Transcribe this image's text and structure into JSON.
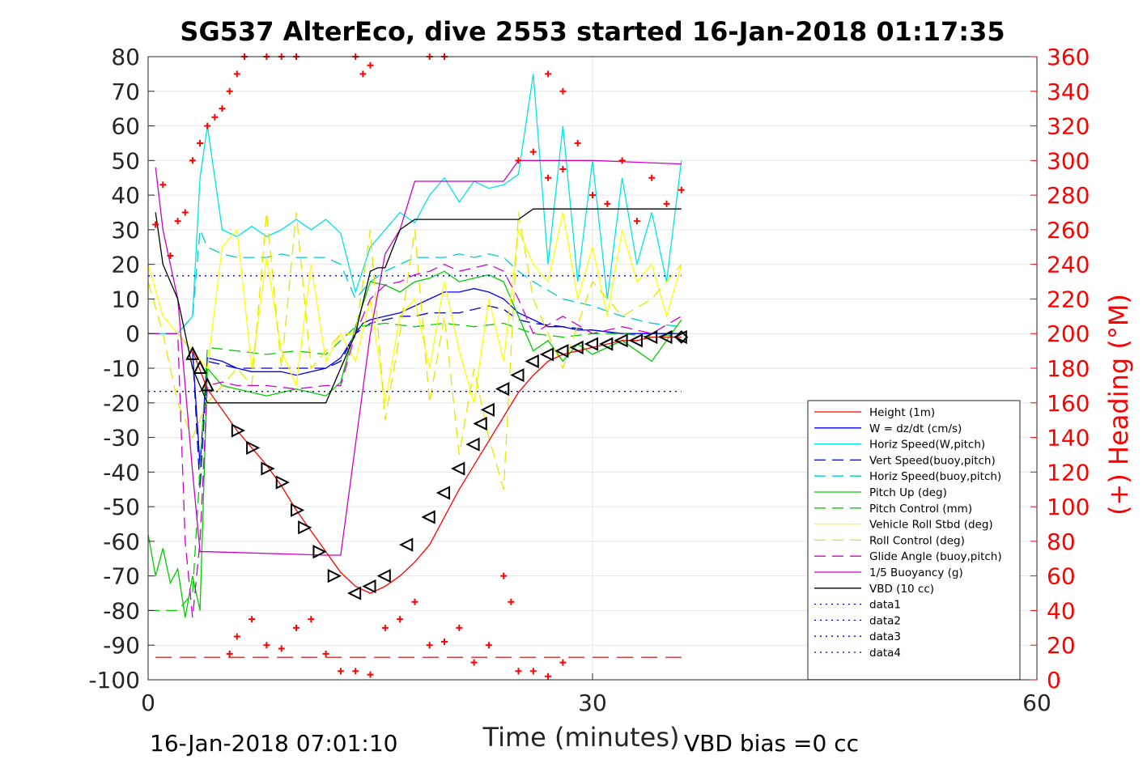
{
  "chart_data": {
    "type": "line",
    "title": "SG537 AlterEco, dive 2553 started 16-Jan-2018 01:17:35",
    "xlabel": "Time (minutes)",
    "ylabel_right": "(+) Heading (°M)",
    "footer_left": "16-Jan-2018 07:01:10",
    "footer_right": "VBD bias =0 cc",
    "xlim": [
      0,
      60
    ],
    "ylim": [
      -100,
      80
    ],
    "ylim_right": [
      0,
      360
    ],
    "x_ticks": [
      "0",
      "30",
      "60"
    ],
    "y_ticks": [
      "80",
      "70",
      "60",
      "50",
      "40",
      "30",
      "20",
      "10",
      "0",
      "-10",
      "-20",
      "-30",
      "-40",
      "-50",
      "-60",
      "-70",
      "-80",
      "-90",
      "-100"
    ],
    "y_right_ticks": [
      "360",
      "340",
      "320",
      "300",
      "280",
      "260",
      "240",
      "220",
      "200",
      "180",
      "160",
      "140",
      "120",
      "100",
      "80",
      "60",
      "40",
      "20",
      "0"
    ],
    "grid": true,
    "legend_position": "lower-right",
    "colors": {
      "height": "#ff0000",
      "w": "#0000ff",
      "horiz": "#00e5e5",
      "vert_buoy": "#0000cc",
      "horiz_buoy": "#00cccc",
      "pitch": "#00cc00",
      "pitch_ctrl": "#00cc00",
      "roll": "#ffff00",
      "roll_ctrl": "#e6e600",
      "glide": "#cc00cc",
      "buoy": "#cc00cc",
      "vbd": "#000000",
      "heading": "#ff0000",
      "data": "#0000aa"
    },
    "series": [
      {
        "name": "Height (1m)",
        "key": "height",
        "style": "solid",
        "x": [
          3,
          4,
          5,
          6,
          7,
          8,
          9,
          10,
          11,
          12,
          13,
          14,
          15,
          16,
          17,
          18,
          19,
          20,
          21,
          22,
          23,
          24,
          25,
          26,
          27,
          28,
          29,
          30,
          31,
          32,
          33,
          34,
          35,
          36
        ],
        "values": [
          -5,
          -16,
          -22,
          -28,
          -33,
          -38,
          -44,
          -51,
          -57,
          -63,
          -69,
          -73,
          -75,
          -73,
          -70,
          -66,
          -61,
          -53,
          -45,
          -38,
          -31,
          -24,
          -17,
          -12,
          -8,
          -6,
          -5,
          -4,
          -3,
          -2,
          -2,
          -1,
          -1,
          -1
        ]
      },
      {
        "name": "W = dz/dt (cm/s)",
        "key": "w",
        "style": "solid",
        "x": [
          0,
          2,
          3,
          3.5,
          4,
          5,
          6,
          7,
          8,
          9,
          10,
          11,
          12,
          13,
          14,
          14.5,
          15,
          16,
          17,
          18,
          19,
          20,
          21,
          22,
          23,
          24,
          25,
          26,
          27,
          28,
          29,
          30,
          32,
          34,
          36
        ],
        "values": [
          0,
          0,
          -5,
          -38,
          -7,
          -8,
          -10,
          -11,
          -11,
          -11,
          -12,
          -11,
          -10,
          -7,
          0,
          3,
          4,
          5,
          6,
          8,
          10,
          12,
          12,
          13,
          12,
          10,
          6,
          4,
          2,
          2,
          1,
          1,
          0,
          0,
          0
        ]
      },
      {
        "name": "Horiz Speed(W,pitch)",
        "key": "horiz",
        "style": "solid",
        "x": [
          0,
          2,
          3,
          3.5,
          4,
          5,
          6,
          7,
          8,
          9,
          10,
          11,
          12,
          13,
          14,
          15,
          16,
          17,
          18,
          19,
          20,
          21,
          22,
          23,
          24,
          25,
          26,
          27,
          28,
          29,
          30,
          31,
          32,
          33,
          34,
          35,
          36
        ],
        "values": [
          0,
          0,
          5,
          45,
          60,
          30,
          28,
          31,
          28,
          30,
          33,
          30,
          33,
          29,
          12,
          25,
          30,
          35,
          32,
          40,
          45,
          38,
          44,
          42,
          43,
          46,
          75,
          20,
          60,
          15,
          50,
          10,
          45,
          20,
          35,
          15,
          50
        ]
      },
      {
        "name": "Vert Speed(buoy,pitch)",
        "key": "vert_buoy",
        "style": "dashed",
        "x": [
          0,
          2,
          3,
          3.5,
          4,
          5,
          6,
          7,
          8,
          9,
          10,
          11,
          12,
          13,
          14,
          15,
          16,
          17,
          18,
          19,
          20,
          21,
          22,
          23,
          24,
          25,
          26,
          28,
          30,
          32,
          34,
          36
        ],
        "values": [
          0,
          0,
          -5,
          -45,
          -8,
          -9,
          -10,
          -10,
          -10,
          -10,
          -10,
          -10,
          -10,
          -8,
          0,
          3,
          4,
          5,
          5,
          6,
          6,
          6,
          7,
          8,
          7,
          4,
          3,
          2,
          1,
          0,
          0,
          0
        ]
      },
      {
        "name": "Horiz Speed(buoy,pitch)",
        "key": "horiz_buoy",
        "style": "dashed",
        "x": [
          0,
          2,
          3,
          3.5,
          4,
          5,
          6,
          7,
          8,
          9,
          10,
          11,
          12,
          13,
          14,
          15,
          16,
          17,
          18,
          19,
          20,
          21,
          22,
          23,
          24,
          25,
          26,
          28,
          30,
          32,
          34,
          36
        ],
        "values": [
          0,
          0,
          5,
          30,
          25,
          23,
          22,
          22,
          22,
          23,
          22,
          22,
          22,
          20,
          10,
          15,
          18,
          20,
          22,
          22,
          22,
          23,
          22,
          23,
          22,
          18,
          15,
          10,
          8,
          5,
          3,
          2
        ]
      },
      {
        "name": "Pitch Up (deg)",
        "key": "pitch",
        "style": "solid",
        "x": [
          0,
          0.5,
          1,
          1.5,
          2,
          2.5,
          3,
          3.5,
          4,
          5,
          6,
          7,
          8,
          9,
          10,
          11,
          12,
          13,
          14,
          15,
          16,
          17,
          18,
          19,
          20,
          21,
          22,
          23,
          24,
          25,
          26,
          27,
          28,
          29,
          30,
          32,
          34,
          36
        ],
        "values": [
          -58,
          -70,
          -62,
          -72,
          -68,
          -82,
          -70,
          -80,
          -10,
          -15,
          -16,
          -17,
          -18,
          -17,
          -16,
          -17,
          -18,
          -14,
          2,
          15,
          14,
          12,
          15,
          16,
          18,
          15,
          16,
          17,
          15,
          5,
          -5,
          -2,
          -8,
          -3,
          -6,
          -2,
          -8,
          4
        ]
      },
      {
        "name": "Pitch Control (mm)",
        "key": "pitch_ctrl",
        "style": "dashed",
        "x": [
          0,
          2,
          3,
          4,
          6,
          8,
          10,
          12,
          14,
          16,
          18,
          20,
          22,
          24,
          26,
          28,
          30,
          32,
          34,
          36
        ],
        "values": [
          -80,
          -80,
          -75,
          -4,
          -5,
          -6,
          -5,
          -6,
          2,
          3,
          2,
          3,
          2,
          3,
          0,
          -1,
          0,
          0,
          -1,
          0
        ]
      },
      {
        "name": "Vehicle Roll Stbd (deg)",
        "key": "roll",
        "style": "solid",
        "x": [
          0,
          1,
          2,
          3,
          4,
          5,
          6,
          7,
          8,
          9,
          10,
          11,
          12,
          13,
          14,
          15,
          16,
          17,
          18,
          19,
          20,
          21,
          22,
          23,
          24,
          25,
          26,
          27,
          28,
          29,
          30,
          31,
          32,
          33,
          34,
          35,
          36
        ],
        "values": [
          20,
          5,
          0,
          -5,
          -10,
          25,
          30,
          -10,
          22,
          -5,
          -15,
          20,
          -8,
          0,
          -8,
          10,
          -20,
          5,
          10,
          -10,
          15,
          -5,
          -20,
          10,
          -8,
          30,
          20,
          15,
          35,
          10,
          25,
          5,
          30,
          15,
          20,
          5,
          20
        ]
      },
      {
        "name": "Roll Control (deg)",
        "key": "roll_ctrl",
        "style": "dashed",
        "x": [
          0,
          1,
          2,
          3,
          4,
          5,
          6,
          7,
          8,
          9,
          10,
          11,
          12,
          13,
          14,
          15,
          16,
          17,
          18,
          19,
          20,
          21,
          22,
          23,
          24,
          25,
          26,
          28,
          30,
          32,
          34,
          36
        ],
        "values": [
          15,
          0,
          -20,
          -30,
          -20,
          -15,
          -10,
          -15,
          35,
          -10,
          35,
          -10,
          -5,
          0,
          0,
          30,
          -25,
          0,
          30,
          -20,
          5,
          -35,
          -10,
          -30,
          -45,
          35,
          10,
          -10,
          15,
          5,
          10,
          20
        ]
      },
      {
        "name": "Glide Angle (buoy,pitch)",
        "key": "glide",
        "style": "dashed",
        "x": [
          0,
          1,
          2,
          2.5,
          3,
          3.5,
          4,
          5,
          6,
          8,
          10,
          12,
          13,
          14,
          15,
          16,
          17,
          18,
          19,
          20,
          21,
          22,
          23,
          24,
          25,
          26,
          28,
          30,
          32,
          34,
          36
        ],
        "values": [
          0,
          0,
          0,
          -60,
          -82,
          -60,
          -15,
          -14,
          -15,
          -15,
          -16,
          -15,
          -15,
          0,
          10,
          14,
          15,
          17,
          18,
          20,
          18,
          19,
          20,
          18,
          10,
          0,
          5,
          0,
          2,
          0,
          5
        ]
      },
      {
        "name": "1/5 Buoyancy (g)",
        "key": "buoy",
        "style": "solid",
        "x": [
          0.5,
          1,
          2,
          3,
          3.5,
          4,
          12,
          13,
          15,
          16,
          17,
          18,
          20,
          22,
          24,
          25,
          26,
          30,
          36
        ],
        "values": [
          48,
          30,
          10,
          -40,
          -63,
          -63,
          -64,
          -64,
          0,
          23,
          30,
          44,
          44,
          44,
          44,
          50,
          50,
          50,
          49
        ]
      },
      {
        "name": "VBD (10 cc)",
        "key": "vbd",
        "style": "solid",
        "x": [
          0.5,
          1,
          2,
          3,
          4,
          12,
          14,
          15,
          15.5,
          16,
          17,
          18,
          20,
          24,
          25,
          26,
          28,
          36
        ],
        "values": [
          35,
          20,
          10,
          -10,
          -20,
          -20,
          0,
          18,
          19,
          19,
          30,
          33,
          33,
          33,
          33,
          36,
          36,
          36
        ]
      },
      {
        "name": "data1",
        "key": "data",
        "style": "dotted",
        "x": [],
        "values": []
      },
      {
        "name": "data2",
        "key": "data",
        "style": "dotted",
        "x": [],
        "values": []
      },
      {
        "name": "data3",
        "key": "data",
        "style": "dotted",
        "x": [
          0,
          36
        ],
        "values": [
          16.7,
          16.7
        ]
      },
      {
        "name": "data4",
        "key": "data",
        "style": "dotted",
        "x": [
          0,
          36
        ],
        "values": [
          -16.7,
          -16.7
        ]
      }
    ],
    "heading_points": [
      [
        0.5,
        263
      ],
      [
        1,
        286
      ],
      [
        1.5,
        245
      ],
      [
        2,
        265
      ],
      [
        2.5,
        270
      ],
      [
        3,
        300
      ],
      [
        3.5,
        310
      ],
      [
        4,
        320
      ],
      [
        4.5,
        325
      ],
      [
        5,
        330
      ],
      [
        5.5,
        340
      ],
      [
        6,
        350
      ],
      [
        6.5,
        363
      ],
      [
        8,
        360
      ],
      [
        9,
        363
      ],
      [
        10,
        360
      ],
      [
        14,
        363
      ],
      [
        14.5,
        350
      ],
      [
        15,
        355
      ],
      [
        19,
        363
      ],
      [
        20,
        360
      ],
      [
        27,
        350
      ],
      [
        28,
        340
      ],
      [
        25,
        300
      ],
      [
        26,
        305
      ],
      [
        27,
        290
      ],
      [
        28,
        295
      ],
      [
        29,
        310
      ],
      [
        30,
        280
      ],
      [
        31,
        275
      ],
      [
        32,
        300
      ],
      [
        33,
        265
      ],
      [
        34,
        290
      ],
      [
        35,
        275
      ],
      [
        36,
        283
      ],
      [
        5.5,
        15
      ],
      [
        6,
        25
      ],
      [
        7,
        35
      ],
      [
        8,
        20
      ],
      [
        9,
        18
      ],
      [
        10,
        30
      ],
      [
        11,
        35
      ],
      [
        12,
        15
      ],
      [
        13,
        5
      ],
      [
        14,
        5
      ],
      [
        15,
        3
      ],
      [
        16,
        30
      ],
      [
        17,
        35
      ],
      [
        18,
        45
      ],
      [
        19,
        20
      ],
      [
        20,
        22
      ],
      [
        21,
        30
      ],
      [
        22,
        10
      ],
      [
        23,
        20
      ],
      [
        24,
        60
      ],
      [
        24.5,
        45
      ],
      [
        25,
        5
      ],
      [
        26,
        5
      ],
      [
        27,
        2
      ],
      [
        28,
        10
      ]
    ],
    "triangle_points": [
      [
        3,
        -6
      ],
      [
        3.5,
        -10
      ],
      [
        4,
        -15
      ],
      [
        6,
        -28
      ],
      [
        7,
        -33
      ],
      [
        8,
        -39
      ],
      [
        9,
        -43
      ],
      [
        10,
        -51
      ],
      [
        10.5,
        -56
      ],
      [
        11.5,
        -63
      ],
      [
        12.5,
        -70
      ],
      [
        14,
        -75
      ],
      [
        15,
        -73
      ],
      [
        16,
        -70
      ],
      [
        17.5,
        -61
      ],
      [
        19,
        -53
      ],
      [
        20,
        -46
      ],
      [
        21,
        -39
      ],
      [
        22,
        -32
      ],
      [
        22.5,
        -26
      ],
      [
        23,
        -22
      ],
      [
        24,
        -16
      ],
      [
        25,
        -12
      ],
      [
        26,
        -8
      ],
      [
        27,
        -6
      ],
      [
        28,
        -5
      ],
      [
        29,
        -4
      ],
      [
        30,
        -3
      ],
      [
        31,
        -3
      ],
      [
        32,
        -2
      ],
      [
        33,
        -2
      ],
      [
        34,
        -1
      ],
      [
        35,
        -1
      ],
      [
        36,
        -1
      ]
    ],
    "dashed_red_hline": -93.5
  }
}
